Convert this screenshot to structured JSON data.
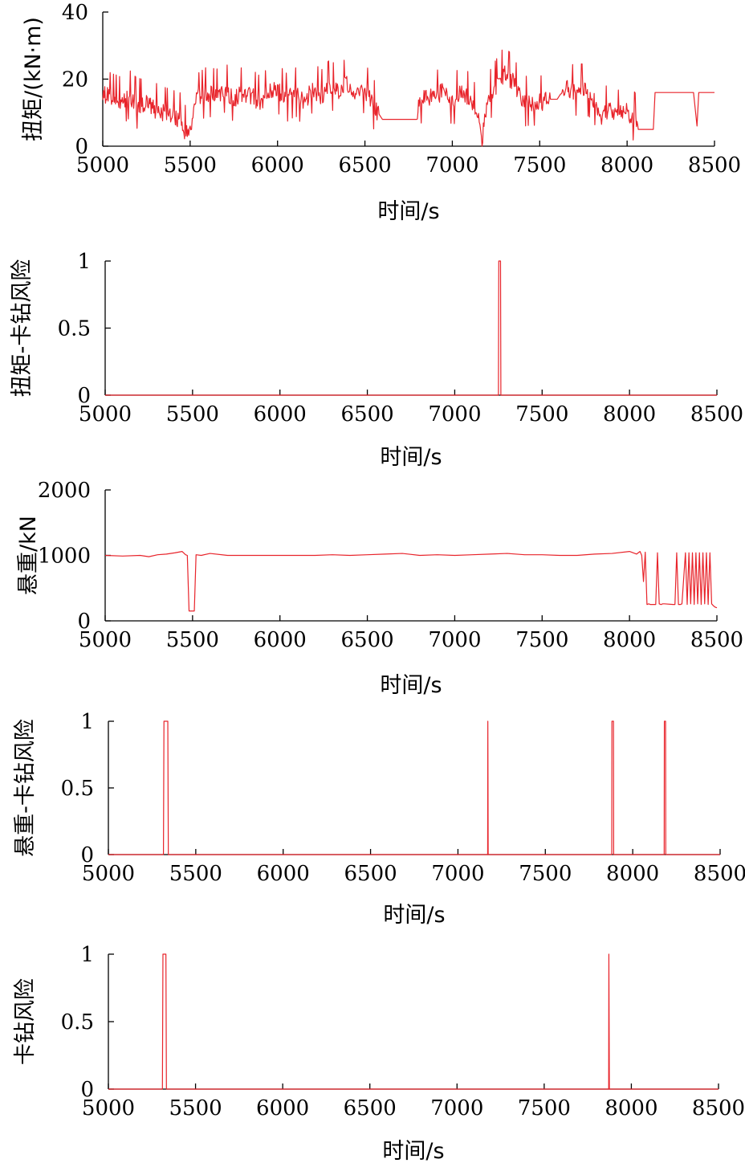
{
  "chart_data": [
    {
      "type": "line",
      "ylabel": "扭矩/(kN·m)",
      "xlabel": "时间/s",
      "xlim": [
        5000,
        8500
      ],
      "ylim": [
        0,
        40
      ],
      "xticks": [
        "5000",
        "5500",
        "6000",
        "6500",
        "7000",
        "7500",
        "8000",
        "8500"
      ],
      "yticks": [
        "0",
        "20",
        "40"
      ],
      "series_color": "#e8242b",
      "series": [
        {
          "x": [
            5000,
            5050,
            5100,
            5150,
            5200,
            5250,
            5300,
            5350,
            5400,
            5450,
            5460,
            5500,
            5540,
            5550,
            5600,
            5650,
            5700,
            5750,
            5800,
            5850,
            5900,
            5950,
            6000,
            6050,
            6100,
            6150,
            6200,
            6250,
            6300,
            6350,
            6400,
            6450,
            6500,
            6550,
            6600,
            6650,
            6700,
            6750,
            6800,
            6810,
            6850,
            6900,
            6950,
            7000,
            7050,
            7100,
            7130,
            7150,
            7170,
            7200,
            7250,
            7300,
            7350,
            7400,
            7450,
            7500,
            7550,
            7600,
            7650,
            7700,
            7750,
            7800,
            7850,
            7900,
            7950,
            7990,
            8000,
            8050,
            8060,
            8100,
            8150,
            8160,
            8300,
            8380,
            8400,
            8410,
            8450,
            8500
          ],
          "y": [
            16,
            14,
            13,
            15,
            12,
            13,
            11,
            10,
            9,
            8,
            4,
            5,
            16,
            14,
            16,
            15,
            17,
            14,
            16,
            15,
            13,
            16,
            17,
            14,
            16,
            13,
            17,
            15,
            18,
            16,
            19,
            15,
            17,
            12,
            8,
            8,
            8,
            8,
            8,
            13,
            15,
            14,
            17,
            13,
            16,
            14,
            11,
            8,
            2,
            13,
            18,
            22,
            19,
            13,
            13,
            13,
            14,
            14,
            18,
            16,
            17,
            15,
            9,
            11,
            9,
            11,
            10,
            8,
            5,
            5,
            5,
            16,
            16,
            16,
            6,
            16,
            16,
            16
          ]
        }
      ]
    },
    {
      "type": "line",
      "ylabel": "扭矩-卡钻风险",
      "xlabel": "时间/s",
      "xlim": [
        5000,
        8500
      ],
      "ylim": [
        0,
        1
      ],
      "xticks": [
        "5000",
        "5500",
        "6000",
        "6500",
        "7000",
        "7500",
        "8000",
        "8500"
      ],
      "yticks": [
        "0",
        "0.5",
        "1"
      ],
      "series_color": "#e8242b",
      "series": [
        {
          "x": [
            5000,
            7250,
            7252,
            7262,
            7264,
            8500
          ],
          "y": [
            0,
            0,
            1,
            1,
            0,
            0
          ]
        }
      ]
    },
    {
      "type": "line",
      "ylabel": "悬重/kN",
      "xlabel": "时间/s",
      "xlim": [
        5000,
        8500
      ],
      "ylim": [
        0,
        2000
      ],
      "xticks": [
        "5000",
        "5500",
        "6000",
        "6500",
        "7000",
        "7500",
        "8000",
        "8500"
      ],
      "yticks": [
        "0",
        "1000",
        "2000"
      ],
      "series_color": "#e8242b",
      "series": [
        {
          "x": [
            5000,
            5100,
            5200,
            5250,
            5300,
            5350,
            5400,
            5440,
            5460,
            5470,
            5480,
            5500,
            5510,
            5520,
            5550,
            5600,
            5700,
            5800,
            5900,
            6000,
            6100,
            6200,
            6300,
            6400,
            6500,
            6600,
            6700,
            6800,
            6900,
            7000,
            7100,
            7200,
            7300,
            7400,
            7500,
            7600,
            7700,
            7800,
            7900,
            8000,
            8040,
            8060,
            8070,
            8080,
            8090,
            8100,
            8110,
            8120,
            8150,
            8160,
            8170,
            8180,
            8190,
            8200,
            8250,
            8260,
            8270,
            8280,
            8290,
            8300,
            8320,
            8330,
            8340,
            8350,
            8360,
            8370,
            8380,
            8390,
            8400,
            8410,
            8420,
            8430,
            8440,
            8450,
            8460,
            8470,
            8480,
            8490,
            8500
          ],
          "y": [
            1000,
            990,
            1000,
            980,
            1010,
            1020,
            1040,
            1060,
            1010,
            1000,
            150,
            150,
            150,
            1010,
            1000,
            1030,
            1000,
            1000,
            1000,
            1000,
            1000,
            1000,
            1010,
            1000,
            1010,
            1020,
            1030,
            1000,
            1010,
            1000,
            1010,
            1020,
            1030,
            1010,
            1010,
            1000,
            1000,
            1020,
            1030,
            1060,
            1020,
            1060,
            1000,
            600,
            1050,
            250,
            260,
            250,
            250,
            1040,
            260,
            250,
            260,
            260,
            250,
            250,
            1040,
            250,
            250,
            260,
            1040,
            250,
            1040,
            260,
            1040,
            250,
            1040,
            260,
            1040,
            250,
            1040,
            260,
            1040,
            250,
            1040,
            260,
            230,
            210,
            200
          ]
        }
      ]
    },
    {
      "type": "line",
      "ylabel": "悬重-卡钻风险",
      "xlabel": "时间/s",
      "xlim": [
        5000,
        8500
      ],
      "ylim": [
        0,
        1
      ],
      "xticks": [
        "5000",
        "5500",
        "6000",
        "6500",
        "7000",
        "7500",
        "8000",
        "8500"
      ],
      "yticks": [
        "0",
        "0.5",
        "1"
      ],
      "series_color": "#e8242b",
      "series": [
        {
          "x": [
            5000,
            5315,
            5318,
            5340,
            5343,
            7170,
            7171,
            7173,
            7880,
            7881,
            7890,
            7891,
            8180,
            8181,
            8188,
            8189,
            8500
          ],
          "y": [
            0,
            0,
            1,
            1,
            0,
            0,
            1,
            0,
            0,
            1,
            1,
            0,
            0,
            1,
            1,
            0,
            0
          ]
        }
      ]
    },
    {
      "type": "line",
      "ylabel": "卡钻风险",
      "xlabel": "时间/s",
      "xlim": [
        5000,
        8500
      ],
      "ylim": [
        0,
        1
      ],
      "xticks": [
        "5000",
        "5500",
        "6000",
        "6500",
        "7000",
        "7500",
        "8000",
        "8500"
      ],
      "yticks": [
        "0",
        "0.5",
        "1"
      ],
      "series_color": "#e8242b",
      "series": [
        {
          "x": [
            5000,
            5310,
            5313,
            5330,
            5333,
            7870,
            7871,
            7874,
            8500
          ],
          "y": [
            0,
            0,
            1,
            1,
            0,
            0,
            1,
            0,
            0
          ]
        }
      ]
    }
  ]
}
